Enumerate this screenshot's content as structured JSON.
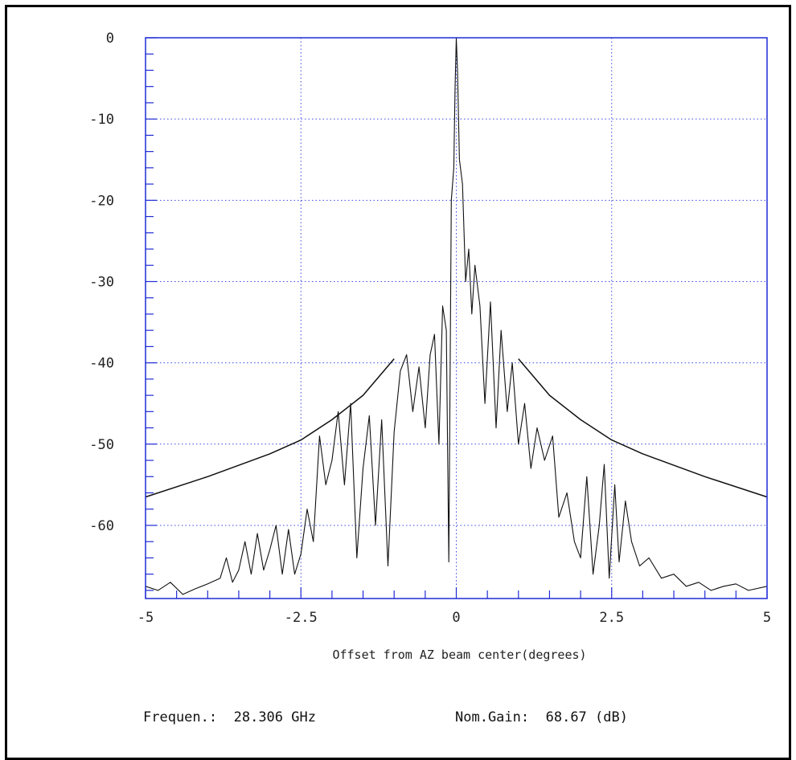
{
  "chart_data": {
    "type": "line",
    "title": "",
    "xlabel": "Offset from AZ beam center(degrees)",
    "ylabel": "",
    "xlim": [
      -5,
      5
    ],
    "ylim": [
      -69,
      0
    ],
    "x_ticks": [
      "-5",
      "-2.5",
      "0",
      "2.5",
      "5"
    ],
    "y_ticks": [
      "0",
      "-10",
      "-20",
      "-30",
      "-40",
      "-50",
      "-60"
    ],
    "grid": true,
    "series": [
      {
        "points": [
          [
            -5.0,
            -67.5
          ],
          [
            -4.8,
            -68.0
          ],
          [
            -4.6,
            -67.0
          ],
          [
            -4.4,
            -68.5
          ],
          [
            -4.2,
            -67.8
          ],
          [
            -4.0,
            -67.2
          ],
          [
            -3.8,
            -66.5
          ],
          [
            -3.7,
            -64.0
          ],
          [
            -3.6,
            -67.0
          ],
          [
            -3.5,
            -65.5
          ],
          [
            -3.4,
            -62.0
          ],
          [
            -3.3,
            -66.0
          ],
          [
            -3.2,
            -61.0
          ],
          [
            -3.1,
            -65.5
          ],
          [
            -3.0,
            -63.0
          ],
          [
            -2.9,
            -60.0
          ],
          [
            -2.8,
            -66.0
          ],
          [
            -2.7,
            -60.5
          ],
          [
            -2.6,
            -66.0
          ],
          [
            -2.5,
            -63.5
          ],
          [
            -2.4,
            -58.0
          ],
          [
            -2.3,
            -62.0
          ],
          [
            -2.2,
            -49.0
          ],
          [
            -2.1,
            -55.0
          ],
          [
            -2.0,
            -52.0
          ],
          [
            -1.9,
            -46.0
          ],
          [
            -1.8,
            -55.0
          ],
          [
            -1.7,
            -45.0
          ],
          [
            -1.6,
            -64.0
          ],
          [
            -1.5,
            -53.0
          ],
          [
            -1.4,
            -46.5
          ],
          [
            -1.3,
            -60.0
          ],
          [
            -1.2,
            -47.0
          ],
          [
            -1.1,
            -65.0
          ],
          [
            -1.0,
            -48.5
          ],
          [
            -0.9,
            -41.0
          ],
          [
            -0.8,
            -39.0
          ],
          [
            -0.7,
            -46.0
          ],
          [
            -0.6,
            -40.5
          ],
          [
            -0.5,
            -48.0
          ],
          [
            -0.42,
            -39.0
          ],
          [
            -0.35,
            -36.5
          ],
          [
            -0.28,
            -50.0
          ],
          [
            -0.22,
            -33.0
          ],
          [
            -0.16,
            -36.0
          ],
          [
            -0.12,
            -64.5
          ],
          [
            -0.08,
            -20.0
          ],
          [
            -0.04,
            -16.0
          ],
          [
            -0.02,
            -6.0
          ],
          [
            0.0,
            0.0
          ],
          [
            0.02,
            -4.0
          ],
          [
            0.05,
            -15.0
          ],
          [
            0.1,
            -18.0
          ],
          [
            0.15,
            -30.0
          ],
          [
            0.2,
            -26.0
          ],
          [
            0.25,
            -34.0
          ],
          [
            0.3,
            -28.0
          ],
          [
            0.38,
            -33.0
          ],
          [
            0.46,
            -45.0
          ],
          [
            0.55,
            -32.5
          ],
          [
            0.64,
            -48.0
          ],
          [
            0.72,
            -36.0
          ],
          [
            0.82,
            -46.0
          ],
          [
            0.9,
            -40.0
          ],
          [
            1.0,
            -50.0
          ],
          [
            1.1,
            -45.0
          ],
          [
            1.2,
            -53.0
          ],
          [
            1.3,
            -48.0
          ],
          [
            1.42,
            -52.0
          ],
          [
            1.55,
            -49.0
          ],
          [
            1.65,
            -59.0
          ],
          [
            1.78,
            -56.0
          ],
          [
            1.9,
            -62.0
          ],
          [
            2.0,
            -64.0
          ],
          [
            2.1,
            -54.0
          ],
          [
            2.2,
            -66.0
          ],
          [
            2.3,
            -60.0
          ],
          [
            2.38,
            -52.5
          ],
          [
            2.46,
            -66.5
          ],
          [
            2.55,
            -55.0
          ],
          [
            2.62,
            -64.5
          ],
          [
            2.72,
            -57.0
          ],
          [
            2.82,
            -62.0
          ],
          [
            2.95,
            -65.0
          ],
          [
            3.1,
            -64.0
          ],
          [
            3.3,
            -66.5
          ],
          [
            3.5,
            -66.0
          ],
          [
            3.7,
            -67.5
          ],
          [
            3.9,
            -67.0
          ],
          [
            4.1,
            -68.0
          ],
          [
            4.3,
            -67.5
          ],
          [
            4.5,
            -67.2
          ],
          [
            4.7,
            -68.0
          ],
          [
            5.0,
            -67.5
          ]
        ]
      },
      {
        "points": [
          [
            -5.0,
            -56.5
          ],
          [
            -4.0,
            -54.0
          ],
          [
            -3.0,
            -51.2
          ],
          [
            -2.5,
            -49.5
          ],
          [
            -2.0,
            -47.0
          ],
          [
            -1.5,
            -44.0
          ],
          [
            -1.0,
            -39.5
          ]
        ]
      },
      {
        "points": [
          [
            1.0,
            -39.5
          ],
          [
            1.5,
            -44.0
          ],
          [
            2.0,
            -47.0
          ],
          [
            2.5,
            -49.5
          ],
          [
            3.0,
            -51.2
          ],
          [
            4.0,
            -54.0
          ],
          [
            5.0,
            -56.5
          ]
        ]
      }
    ]
  },
  "footer": {
    "freq_label": "Frequen.:",
    "freq_value": "28.306 GHz",
    "gain_label": "Nom.Gain:",
    "gain_value": "68.67 (dB)"
  },
  "colors": {
    "axis": "#1f2bd6",
    "grid": "#3a49e0",
    "line": "#111111"
  }
}
